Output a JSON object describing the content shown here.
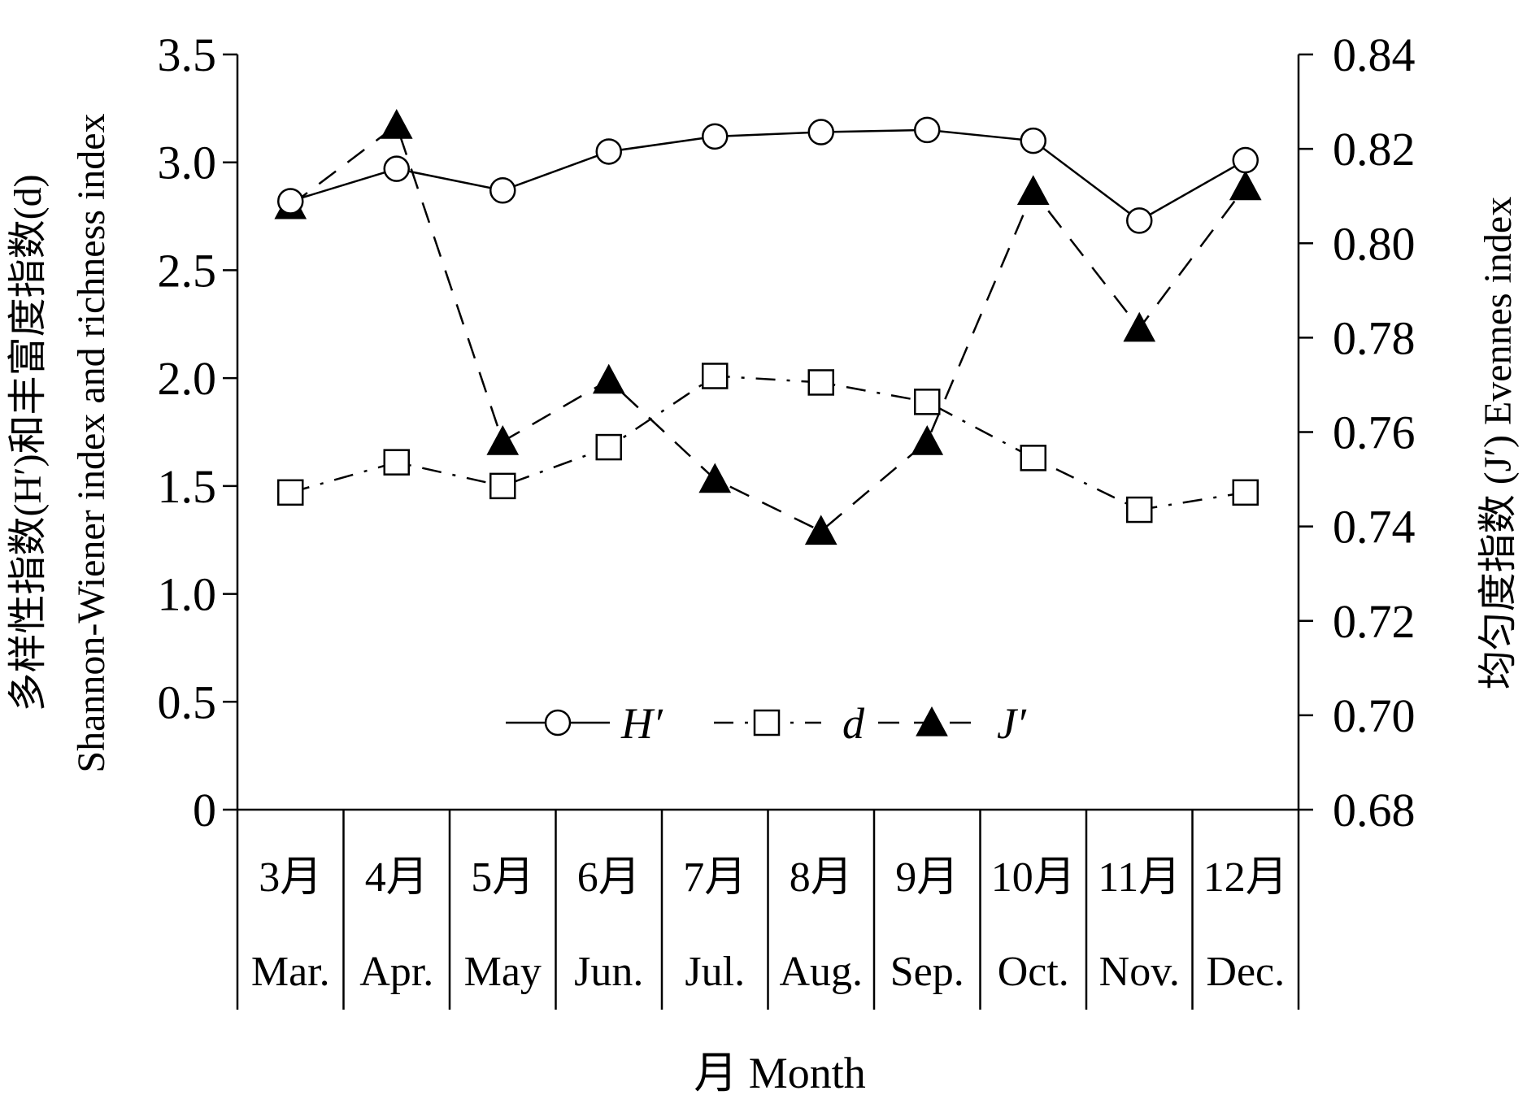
{
  "chart_data": {
    "type": "line",
    "categories_zh": [
      "3月",
      "4月",
      "5月",
      "6月",
      "7月",
      "8月",
      "9月",
      "10月",
      "11月",
      "12月"
    ],
    "categories_en": [
      "Mar.",
      "Apr.",
      "May",
      "Jun.",
      "Jul.",
      "Aug.",
      "Sep.",
      "Oct.",
      "Nov.",
      "Dec."
    ],
    "xlabel": "月 Month",
    "ylabel_left_line1": "多样性指数(H′)和丰富度指数(d)",
    "ylabel_left_line2": "Shannon-Wiener index and richness index",
    "ylabel_right": "均匀度指数 (J′) Evennes index",
    "y_left": {
      "ylim": [
        0,
        3.5
      ],
      "ticks": [
        0,
        0.5,
        1.0,
        1.5,
        2.0,
        2.5,
        3.0,
        3.5
      ],
      "tick_labels": [
        "0",
        "0.5",
        "1.0",
        "1.5",
        "2.0",
        "2.5",
        "3.0",
        "3.5"
      ]
    },
    "y_right": {
      "ylim": [
        0.68,
        0.84
      ],
      "ticks": [
        0.68,
        0.7,
        0.72,
        0.74,
        0.76,
        0.78,
        0.8,
        0.82,
        0.84
      ],
      "tick_labels": [
        "0.68",
        "0.70",
        "0.72",
        "0.74",
        "0.76",
        "0.78",
        "0.80",
        "0.82",
        "0.84"
      ]
    },
    "series": [
      {
        "name": "H′",
        "axis": "left",
        "marker": "open-circle",
        "line": "solid",
        "values": [
          2.82,
          2.97,
          2.87,
          3.05,
          3.12,
          3.14,
          3.15,
          3.1,
          2.73,
          3.01
        ]
      },
      {
        "name": "d",
        "axis": "left",
        "marker": "open-square",
        "line": "dash-dot",
        "values": [
          1.47,
          1.61,
          1.5,
          1.68,
          2.01,
          1.98,
          1.89,
          1.63,
          1.39,
          1.47
        ]
      },
      {
        "name": "J′",
        "axis": "right",
        "marker": "filled-triangle",
        "line": "dashed",
        "values": [
          0.808,
          0.825,
          0.758,
          0.771,
          0.75,
          0.739,
          0.758,
          0.811,
          0.782,
          0.812
        ]
      }
    ],
    "legend": {
      "placement": "bottom-center",
      "items": [
        "H′",
        "d",
        "J′"
      ]
    },
    "grid": false
  }
}
